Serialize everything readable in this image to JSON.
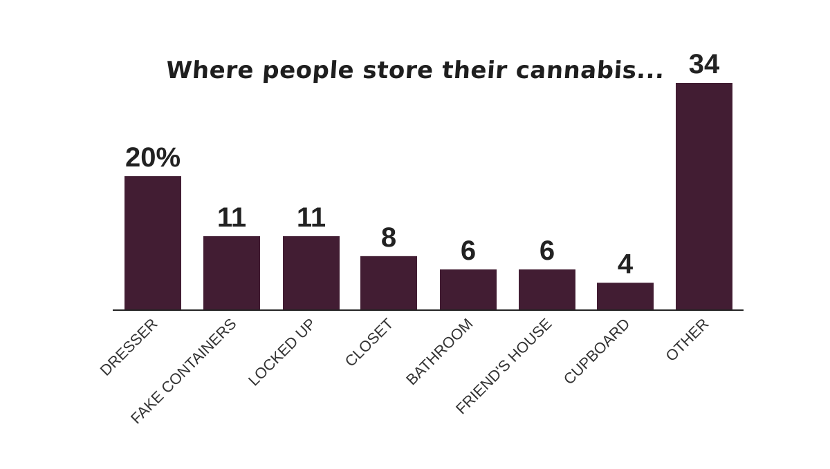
{
  "chart_data": {
    "type": "bar",
    "title": "Where people store their cannabis...",
    "categories": [
      "DRESSER",
      "FAKE CONTAINERS",
      "LOCKED UP",
      "CLOSET",
      "BATHROOM",
      "FRIEND'S HOUSE",
      "CUPBOARD",
      "OTHER"
    ],
    "values": [
      20,
      11,
      11,
      8,
      6,
      6,
      4,
      34
    ],
    "data_labels": [
      "20%",
      "11",
      "11",
      "8",
      "6",
      "6",
      "4",
      "34"
    ],
    "unit": "%",
    "xlabel": "",
    "ylabel": "",
    "ylim": [
      0,
      34
    ],
    "grid": false,
    "bar_color": "#421d33"
  }
}
